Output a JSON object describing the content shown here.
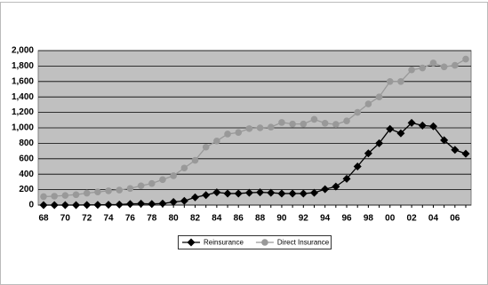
{
  "chart_data": {
    "type": "line",
    "categories": [
      "68",
      null,
      "70",
      null,
      "72",
      null,
      "74",
      null,
      "76",
      null,
      "78",
      null,
      "80",
      null,
      "82",
      null,
      "84",
      null,
      "86",
      null,
      "88",
      null,
      "90",
      null,
      "92",
      null,
      "94",
      null,
      "96",
      null,
      "98",
      null,
      "00",
      null,
      "02",
      null,
      "04",
      null,
      "06",
      null
    ],
    "series": [
      {
        "name": "Reinsurance",
        "color": "#000000",
        "marker": "diamond",
        "values": [
          0,
          0,
          0,
          0,
          2,
          3,
          5,
          7,
          15,
          18,
          15,
          20,
          40,
          55,
          100,
          130,
          165,
          150,
          150,
          160,
          165,
          160,
          150,
          150,
          150,
          160,
          205,
          240,
          340,
          500,
          670,
          800,
          985,
          930,
          1065,
          1030,
          1020,
          840,
          715,
          665
        ]
      },
      {
        "name": "Direct Insurance",
        "color": "#999999",
        "marker": "circle",
        "values": [
          110,
          115,
          125,
          135,
          155,
          170,
          185,
          195,
          215,
          250,
          280,
          330,
          380,
          480,
          580,
          750,
          830,
          920,
          940,
          990,
          1000,
          1010,
          1070,
          1050,
          1050,
          1110,
          1060,
          1045,
          1090,
          1200,
          1310,
          1400,
          1600,
          1600,
          1750,
          1775,
          1840,
          1790,
          1810,
          1890
        ]
      }
    ],
    "ylim": [
      0,
      2000
    ],
    "yticks": [
      0,
      200,
      400,
      600,
      800,
      {
        "value": 1000,
        "label": "1,000"
      },
      {
        "value": 1200,
        "label": "1,200"
      },
      {
        "value": 1400,
        "label": "1,400"
      },
      {
        "value": 1600,
        "label": "1,600"
      },
      {
        "value": 1800,
        "label": "1,800"
      },
      {
        "value": 2000,
        "label": "2,000"
      }
    ],
    "grid": true,
    "legend": "bottom",
    "plot_background": "#c0c0c0"
  }
}
